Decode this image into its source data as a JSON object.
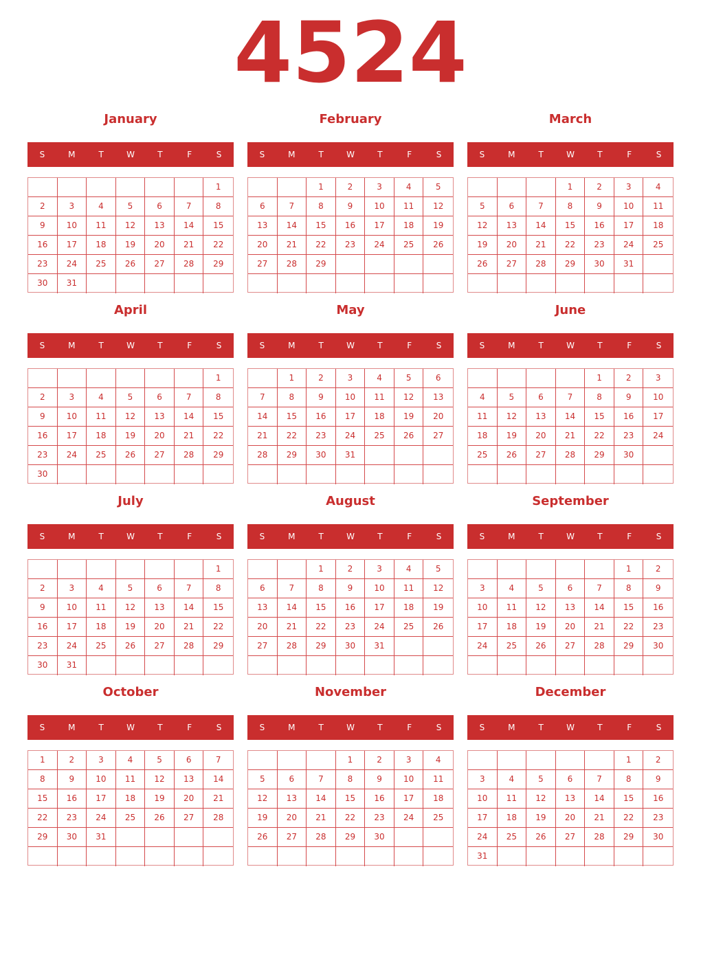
{
  "year": "4524",
  "weekdays": [
    "S",
    "M",
    "T",
    "W",
    "T",
    "F",
    "S"
  ],
  "months": [
    {
      "name": "January",
      "first_weekday": 6,
      "days": 31
    },
    {
      "name": "February",
      "first_weekday": 2,
      "days": 29
    },
    {
      "name": "March",
      "first_weekday": 3,
      "days": 31
    },
    {
      "name": "April",
      "first_weekday": 6,
      "days": 30
    },
    {
      "name": "May",
      "first_weekday": 1,
      "days": 31
    },
    {
      "name": "June",
      "first_weekday": 4,
      "days": 30
    },
    {
      "name": "July",
      "first_weekday": 6,
      "days": 31
    },
    {
      "name": "August",
      "first_weekday": 2,
      "days": 31
    },
    {
      "name": "September",
      "first_weekday": 5,
      "days": 30
    },
    {
      "name": "October",
      "first_weekday": 0,
      "days": 31
    },
    {
      "name": "November",
      "first_weekday": 3,
      "days": 30
    },
    {
      "name": "December",
      "first_weekday": 5,
      "days": 31
    }
  ],
  "colors": {
    "accent": "#c92e2e",
    "grid": "#d4494b"
  }
}
